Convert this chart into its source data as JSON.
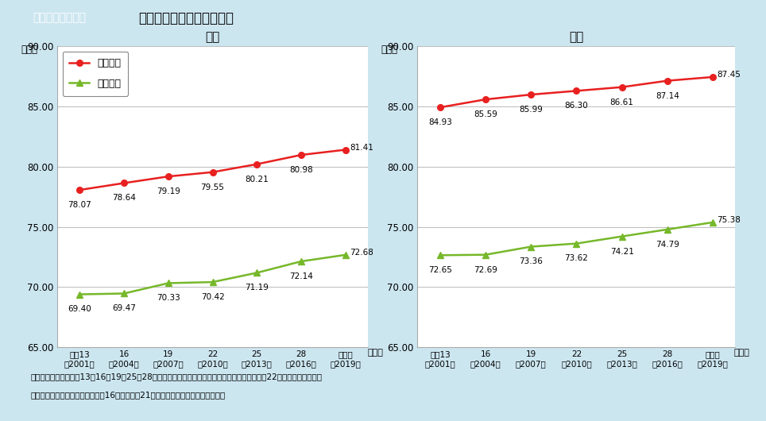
{
  "title_box": "図１－２－２－２",
  "title_text": "健康寿命と平均寿命の推移",
  "years": [
    "平成13\n（2001）",
    "16\n（2004）",
    "19\n（2007）",
    "22\n（2010）",
    "25\n（2013）",
    "28\n（2016）",
    "令和元\n（2019）"
  ],
  "male_avg": [
    78.07,
    78.64,
    79.19,
    79.55,
    80.21,
    80.98,
    81.41
  ],
  "male_health": [
    69.4,
    69.47,
    70.33,
    70.42,
    71.19,
    72.14,
    72.68
  ],
  "female_avg": [
    84.93,
    85.59,
    85.99,
    86.3,
    86.61,
    87.14,
    87.45
  ],
  "female_health": [
    72.65,
    72.69,
    73.36,
    73.62,
    74.21,
    74.79,
    75.38
  ],
  "avg_color": "#e82020",
  "health_color": "#76b82a",
  "bg_color": "#cce6f0",
  "plot_bg": "#ffffff",
  "grid_color": "#bbbbbb",
  "title_bg": "#5bacc8",
  "title_text_color": "#ffffff",
  "ylim": [
    65.0,
    90.0
  ],
  "yticks": [
    65.0,
    70.0,
    75.0,
    80.0,
    85.0,
    90.0
  ],
  "legend_avg": "平均寿命",
  "legend_health": "健康寿命",
  "male_title": "男性",
  "female_title": "女性",
  "ylabel": "（年）",
  "xlabel_suffix": "（年）",
  "footnote1": "資料：平均寿命：平成13・16・19・25・28年・令和元年は、厚生労働省「簡易生命表」、平成22年は「完全生命表」",
  "footnote2": "　　　健康寿命：厚生労働省「第16回健康日本21（第二次）推進専門委員会資料」"
}
